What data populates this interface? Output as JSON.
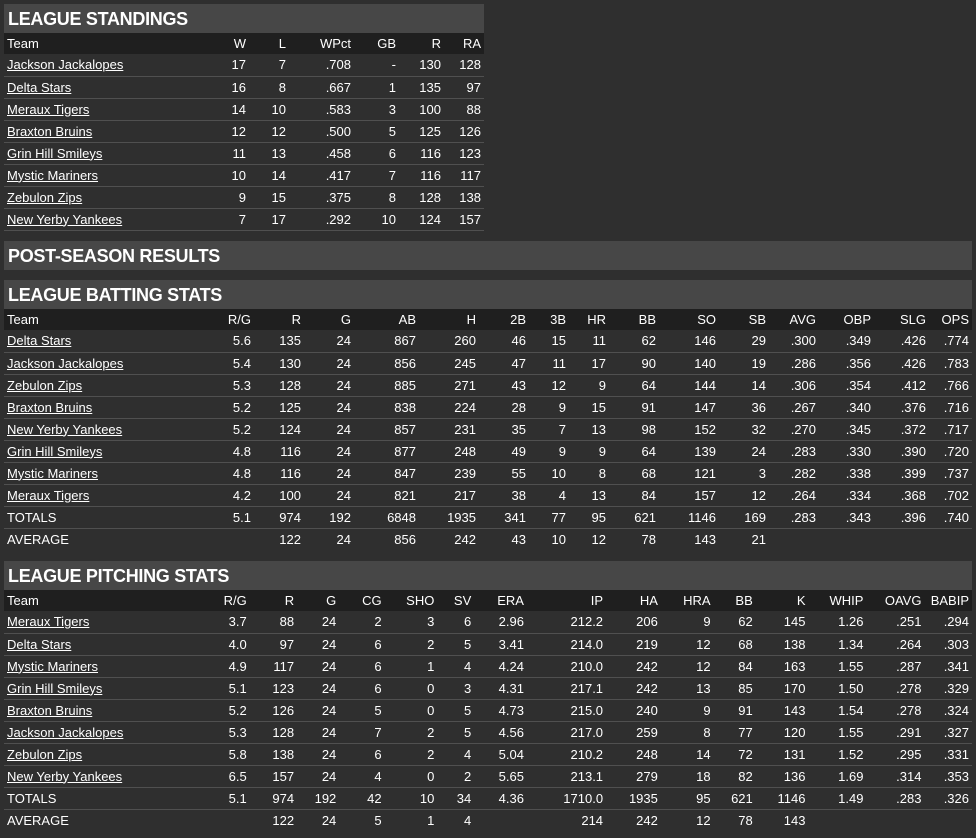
{
  "standings": {
    "title": "LEAGUE STANDINGS",
    "columns": [
      "Team",
      "W",
      "L",
      "WPct",
      "GB",
      "R",
      "RA"
    ],
    "rows": [
      [
        "Jackson Jackalopes",
        "17",
        "7",
        ".708",
        "-",
        "130",
        "128"
      ],
      [
        "Delta Stars",
        "16",
        "8",
        ".667",
        "1",
        "135",
        "97"
      ],
      [
        "Meraux Tigers",
        "14",
        "10",
        ".583",
        "3",
        "100",
        "88"
      ],
      [
        "Braxton Bruins",
        "12",
        "12",
        ".500",
        "5",
        "125",
        "126"
      ],
      [
        "Grin Hill Smileys",
        "11",
        "13",
        ".458",
        "6",
        "116",
        "123"
      ],
      [
        "Mystic Mariners",
        "10",
        "14",
        ".417",
        "7",
        "116",
        "117"
      ],
      [
        "Zebulon Zips",
        "9",
        "15",
        ".375",
        "8",
        "128",
        "138"
      ],
      [
        "New Yerby Yankees",
        "7",
        "17",
        ".292",
        "10",
        "124",
        "157"
      ]
    ]
  },
  "postseason": {
    "title": "POST-SEASON RESULTS"
  },
  "batting": {
    "title": "LEAGUE BATTING STATS",
    "columns": [
      "Team",
      "R/G",
      "R",
      "G",
      "AB",
      "H",
      "2B",
      "3B",
      "HR",
      "BB",
      "SO",
      "SB",
      "AVG",
      "OBP",
      "SLG",
      "OPS"
    ],
    "rows": [
      [
        "Delta Stars",
        "5.6",
        "135",
        "24",
        "867",
        "260",
        "46",
        "15",
        "11",
        "62",
        "146",
        "29",
        ".300",
        ".349",
        ".426",
        ".774"
      ],
      [
        "Jackson Jackalopes",
        "5.4",
        "130",
        "24",
        "856",
        "245",
        "47",
        "11",
        "17",
        "90",
        "140",
        "19",
        ".286",
        ".356",
        ".426",
        ".783"
      ],
      [
        "Zebulon Zips",
        "5.3",
        "128",
        "24",
        "885",
        "271",
        "43",
        "12",
        "9",
        "64",
        "144",
        "14",
        ".306",
        ".354",
        ".412",
        ".766"
      ],
      [
        "Braxton Bruins",
        "5.2",
        "125",
        "24",
        "838",
        "224",
        "28",
        "9",
        "15",
        "91",
        "147",
        "36",
        ".267",
        ".340",
        ".376",
        ".716"
      ],
      [
        "New Yerby Yankees",
        "5.2",
        "124",
        "24",
        "857",
        "231",
        "35",
        "7",
        "13",
        "98",
        "152",
        "32",
        ".270",
        ".345",
        ".372",
        ".717"
      ],
      [
        "Grin Hill Smileys",
        "4.8",
        "116",
        "24",
        "877",
        "248",
        "49",
        "9",
        "9",
        "64",
        "139",
        "24",
        ".283",
        ".330",
        ".390",
        ".720"
      ],
      [
        "Mystic Mariners",
        "4.8",
        "116",
        "24",
        "847",
        "239",
        "55",
        "10",
        "8",
        "68",
        "121",
        "3",
        ".282",
        ".338",
        ".399",
        ".737"
      ],
      [
        "Meraux Tigers",
        "4.2",
        "100",
        "24",
        "821",
        "217",
        "38",
        "4",
        "13",
        "84",
        "157",
        "12",
        ".264",
        ".334",
        ".368",
        ".702"
      ]
    ],
    "totals": [
      "TOTALS",
      "5.1",
      "974",
      "192",
      "6848",
      "1935",
      "341",
      "77",
      "95",
      "621",
      "1146",
      "169",
      ".283",
      ".343",
      ".396",
      ".740"
    ],
    "average": [
      "AVERAGE",
      "",
      "122",
      "24",
      "856",
      "242",
      "43",
      "10",
      "12",
      "78",
      "143",
      "21",
      "",
      "",
      "",
      ""
    ]
  },
  "pitching": {
    "title": "LEAGUE PITCHING STATS",
    "columns": [
      "Team",
      "R/G",
      "R",
      "G",
      "CG",
      "SHO",
      "SV",
      "ERA",
      "IP",
      "HA",
      "HRA",
      "BB",
      "K",
      "WHIP",
      "OAVG",
      "BABIP"
    ],
    "rows": [
      [
        "Meraux Tigers",
        "3.7",
        "88",
        "24",
        "2",
        "3",
        "6",
        "2.96",
        "212.2",
        "206",
        "9",
        "62",
        "145",
        "1.26",
        ".251",
        ".294"
      ],
      [
        "Delta Stars",
        "4.0",
        "97",
        "24",
        "6",
        "2",
        "5",
        "3.41",
        "214.0",
        "219",
        "12",
        "68",
        "138",
        "1.34",
        ".264",
        ".303"
      ],
      [
        "Mystic Mariners",
        "4.9",
        "117",
        "24",
        "6",
        "1",
        "4",
        "4.24",
        "210.0",
        "242",
        "12",
        "84",
        "163",
        "1.55",
        ".287",
        ".341"
      ],
      [
        "Grin Hill Smileys",
        "5.1",
        "123",
        "24",
        "6",
        "0",
        "3",
        "4.31",
        "217.1",
        "242",
        "13",
        "85",
        "170",
        "1.50",
        ".278",
        ".329"
      ],
      [
        "Braxton Bruins",
        "5.2",
        "126",
        "24",
        "5",
        "0",
        "5",
        "4.73",
        "215.0",
        "240",
        "9",
        "91",
        "143",
        "1.54",
        ".278",
        ".324"
      ],
      [
        "Jackson Jackalopes",
        "5.3",
        "128",
        "24",
        "7",
        "2",
        "5",
        "4.56",
        "217.0",
        "259",
        "8",
        "77",
        "120",
        "1.55",
        ".291",
        ".327"
      ],
      [
        "Zebulon Zips",
        "5.8",
        "138",
        "24",
        "6",
        "2",
        "4",
        "5.04",
        "210.2",
        "248",
        "14",
        "72",
        "131",
        "1.52",
        ".295",
        ".331"
      ],
      [
        "New Yerby Yankees",
        "6.5",
        "157",
        "24",
        "4",
        "0",
        "2",
        "5.65",
        "213.1",
        "279",
        "18",
        "82",
        "136",
        "1.69",
        ".314",
        ".353"
      ]
    ],
    "totals": [
      "TOTALS",
      "5.1",
      "974",
      "192",
      "42",
      "10",
      "34",
      "4.36",
      "1710.0",
      "1935",
      "95",
      "621",
      "1146",
      "1.49",
      ".283",
      ".326"
    ],
    "average": [
      "AVERAGE",
      "",
      "122",
      "24",
      "5",
      "1",
      "4",
      "",
      "214",
      "242",
      "12",
      "78",
      "143",
      "",
      "",
      ""
    ]
  }
}
